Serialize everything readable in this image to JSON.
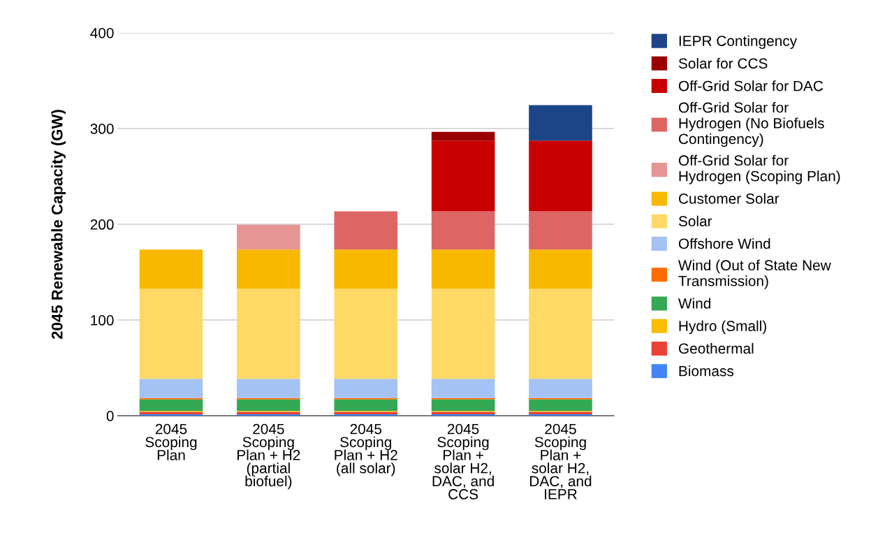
{
  "chart_data": {
    "type": "bar",
    "stacked": true,
    "ylabel": "2045 Renewable Capacity (GW)",
    "categories": [
      "2045\nScoping\nPlan",
      "2045\nScoping\nPlan + H2\n(partial\nbiofuel)",
      "2045\nScoping\nPlan + H2\n(all solar)",
      "2045\nScoping\nPlan +\nsolar H2,\nDAC, and\nCCS",
      "2045\nScoping\nPlan +\nsolar H2,\nDAC, and\nIEPR"
    ],
    "series": [
      {
        "name": "Biomass",
        "color": "#4285f4",
        "values": [
          1.5,
          1.5,
          1.5,
          1.5,
          1.5
        ]
      },
      {
        "name": "Geothermal",
        "color": "#ea4335",
        "values": [
          2.5,
          2.5,
          2.5,
          2.5,
          2.5
        ]
      },
      {
        "name": "Hydro (Small)",
        "color": "#fbbc04",
        "values": [
          1,
          1,
          1,
          1,
          1
        ]
      },
      {
        "name": "Wind",
        "color": "#34a853",
        "values": [
          12,
          12,
          12,
          12,
          12
        ]
      },
      {
        "name": "Wind (Out of State New Transmission)",
        "color": "#ff6d01",
        "values": [
          1.5,
          1.5,
          1.5,
          1.5,
          1.5
        ]
      },
      {
        "name": "Offshore Wind",
        "color": "#a4c2f4",
        "values": [
          20,
          20,
          20,
          20,
          20
        ]
      },
      {
        "name": "Solar",
        "color": "#ffd966",
        "values": [
          94,
          94,
          94,
          94,
          94
        ]
      },
      {
        "name": "Customer Solar",
        "color": "#f9b800",
        "values": [
          41,
          41,
          41,
          41,
          41
        ]
      },
      {
        "name": "Off-Grid Solar for Hydrogen (Scoping Plan)",
        "color": "#e69595",
        "values": [
          null,
          26,
          null,
          null,
          null
        ]
      },
      {
        "name": "Off-Grid Solar for Hydrogen (No Biofuels Contingency)",
        "color": "#dd6665",
        "values": [
          null,
          null,
          40,
          40,
          40
        ]
      },
      {
        "name": "Off-Grid Solar for DAC",
        "color": "#c80000",
        "values": [
          null,
          null,
          null,
          74,
          74
        ]
      },
      {
        "name": "Solar for CCS",
        "color": "#990000",
        "values": [
          null,
          null,
          null,
          9,
          null
        ]
      },
      {
        "name": "IEPR Contingency",
        "color": "#1c4587",
        "values": [
          null,
          null,
          null,
          null,
          37
        ]
      }
    ],
    "ylim": [
      0,
      400
    ],
    "yticks": [
      0,
      100,
      200,
      300,
      400
    ],
    "grid": "y",
    "legend": "right"
  }
}
